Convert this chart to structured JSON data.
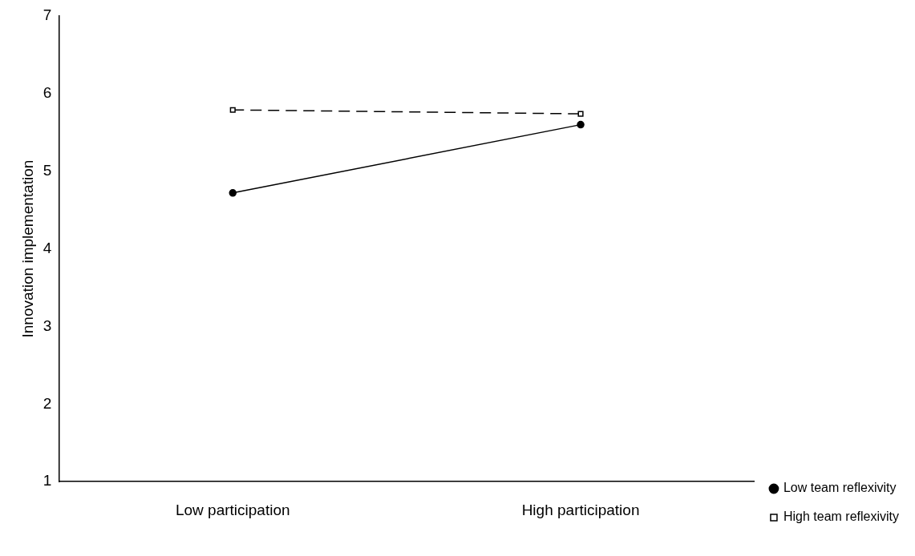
{
  "chart_data": {
    "type": "line",
    "ylabel": "Innovation implementation",
    "categories": [
      "Low participation",
      "High participation"
    ],
    "series": [
      {
        "name": "Low team reflexivity",
        "color": "#000000",
        "values": [
          4.72,
          5.6
        ],
        "marker": "circle",
        "line_style": "solid"
      },
      {
        "name": "High team reflexivity",
        "color": "#000000",
        "values": [
          5.79,
          5.74
        ],
        "marker": "square",
        "line_style": "dashed"
      }
    ],
    "ylim": [
      1,
      7
    ],
    "yticks": [
      1,
      2,
      3,
      4,
      5,
      6,
      7
    ],
    "grid": false,
    "legend": "bottom right"
  }
}
